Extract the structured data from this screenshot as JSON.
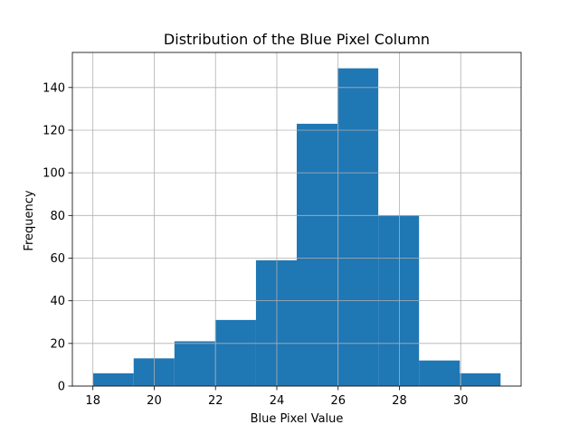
{
  "chart_data": {
    "type": "bar",
    "title": "Distribution of the Blue Pixel Column",
    "xlabel": "Blue Pixel Value",
    "ylabel": "Frequency",
    "bins": [
      {
        "x0": 18.0,
        "x1": 19.33,
        "count": 6
      },
      {
        "x0": 19.33,
        "x1": 20.66,
        "count": 13
      },
      {
        "x0": 20.66,
        "x1": 21.99,
        "count": 21
      },
      {
        "x0": 21.99,
        "x1": 23.32,
        "count": 31
      },
      {
        "x0": 23.32,
        "x1": 24.65,
        "count": 59
      },
      {
        "x0": 24.65,
        "x1": 25.98,
        "count": 123
      },
      {
        "x0": 25.98,
        "x1": 27.31,
        "count": 149
      },
      {
        "x0": 27.31,
        "x1": 28.64,
        "count": 80
      },
      {
        "x0": 28.64,
        "x1": 29.97,
        "count": 12
      },
      {
        "x0": 29.97,
        "x1": 31.3,
        "count": 6
      }
    ],
    "xticks": [
      18,
      20,
      22,
      24,
      26,
      28,
      30
    ],
    "yticks": [
      0,
      20,
      40,
      60,
      80,
      100,
      120,
      140
    ],
    "xlim": [
      17.33,
      31.97
    ],
    "ylim": [
      0,
      156.45
    ],
    "grid": true,
    "bar_color": "#1f77b4",
    "grid_color": "#b0b0b0"
  }
}
